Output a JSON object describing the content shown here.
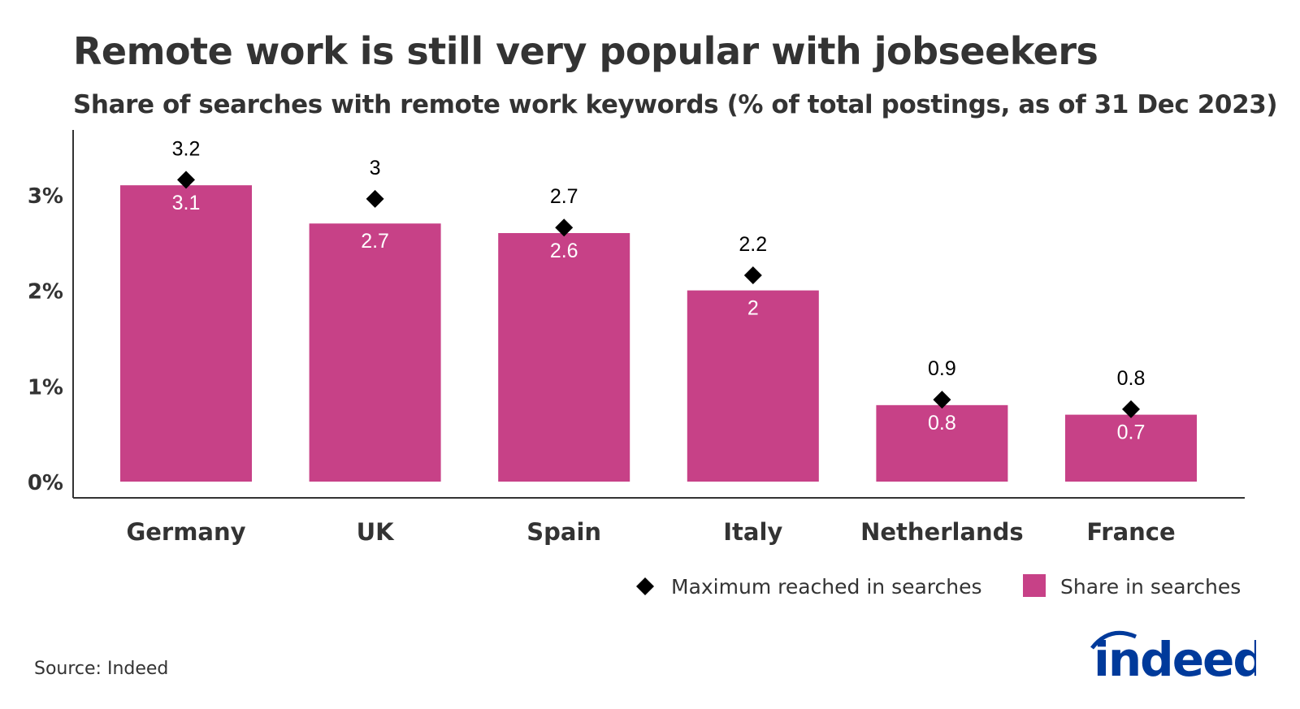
{
  "title": "Remote work is still very popular with jobseekers",
  "subtitle": "Share of searches with remote work keywords (% of total postings, as of 31 Dec 2023)",
  "source": "Source: Indeed",
  "logo_text": "indeed",
  "colors": {
    "bar": "#C74187",
    "marker": "#000000",
    "logo": "#003A9B",
    "axis": "#333333"
  },
  "chart_data": {
    "type": "bar",
    "categories": [
      "Germany",
      "UK",
      "Spain",
      "Italy",
      "Netherlands",
      "France"
    ],
    "series": [
      {
        "name": "Share in searches",
        "kind": "bar",
        "values": [
          3.1,
          2.7,
          2.6,
          2,
          0.8,
          0.7
        ]
      },
      {
        "name": "Maximum reached in searches",
        "kind": "diamond-marker",
        "values": [
          3.2,
          3,
          2.7,
          2.2,
          0.9,
          0.8
        ]
      }
    ],
    "yticks": [
      "0%",
      "1%",
      "2%",
      "3%"
    ],
    "ylim": [
      0,
      3.6
    ],
    "grid": false,
    "legend_placement": "bottom-right",
    "legend": [
      "Maximum reached in searches",
      "Share in searches"
    ]
  }
}
